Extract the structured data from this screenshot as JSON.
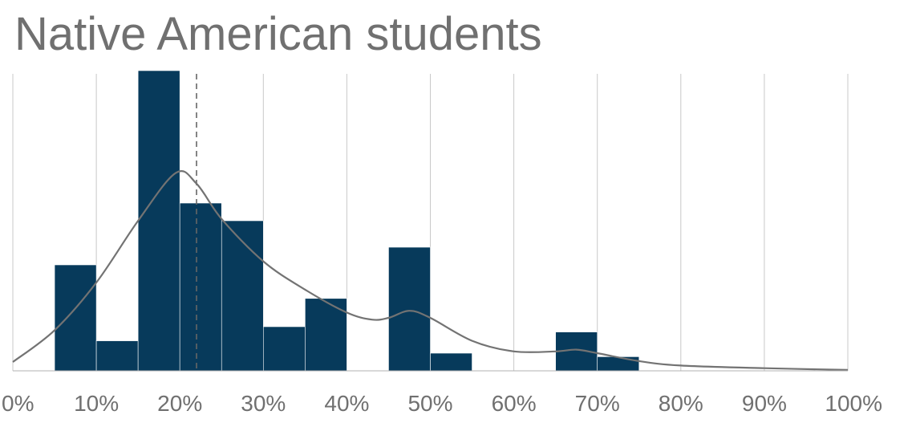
{
  "chart_data": {
    "type": "bar",
    "title": "Native American students",
    "xlabel": "",
    "ylabel": "",
    "xlim": [
      0,
      100
    ],
    "x_ticks": [
      "0%",
      "10%",
      "20%",
      "30%",
      "40%",
      "50%",
      "60%",
      "70%",
      "80%",
      "90%",
      "100%"
    ],
    "bin_width": 5,
    "bins": [
      {
        "start": 5,
        "value": 6.0
      },
      {
        "start": 10,
        "value": 1.7
      },
      {
        "start": 15,
        "value": 17.0
      },
      {
        "start": 20,
        "value": 9.5
      },
      {
        "start": 25,
        "value": 8.5
      },
      {
        "start": 30,
        "value": 2.5
      },
      {
        "start": 35,
        "value": 4.1
      },
      {
        "start": 45,
        "value": 7.0
      },
      {
        "start": 50,
        "value": 1.0
      },
      {
        "start": 65,
        "value": 2.2
      },
      {
        "start": 70,
        "value": 0.8
      }
    ],
    "ylim": [
      0,
      17
    ],
    "mean_line": 22,
    "density_curve": [
      [
        0,
        0.5
      ],
      [
        5,
        2.3
      ],
      [
        10,
        5.0
      ],
      [
        15,
        8.5
      ],
      [
        19.5,
        11.2
      ],
      [
        22,
        10.6
      ],
      [
        25,
        8.6
      ],
      [
        30,
        6.2
      ],
      [
        35,
        4.6
      ],
      [
        40,
        3.3
      ],
      [
        43,
        2.9
      ],
      [
        45,
        3.0
      ],
      [
        47.5,
        3.4
      ],
      [
        50,
        3.0
      ],
      [
        55,
        1.7
      ],
      [
        60,
        1.1
      ],
      [
        65,
        1.1
      ],
      [
        67.5,
        1.2
      ],
      [
        70,
        1.0
      ],
      [
        75,
        0.55
      ],
      [
        80,
        0.3
      ],
      [
        90,
        0.15
      ],
      [
        100,
        0.05
      ]
    ],
    "grid": true,
    "colors": {
      "bar": "#073a5b",
      "curve": "#737373",
      "grid": "#c8c8c8",
      "mean_line": "#666666"
    }
  }
}
